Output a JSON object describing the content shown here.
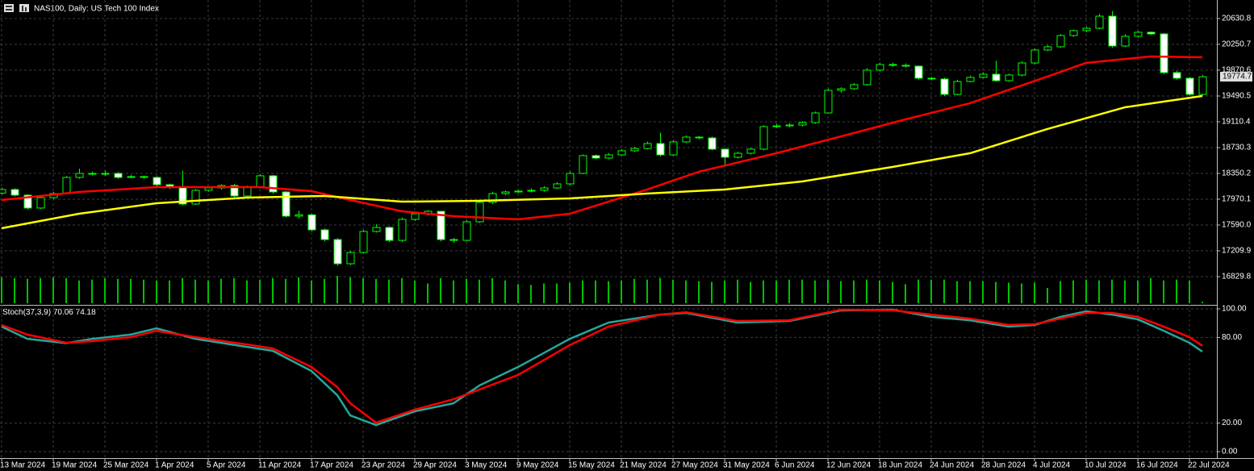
{
  "chart_data": [
    {
      "type": "candlestick",
      "title": "NAS100, Daily:  US Tech 100 Index",
      "categories": [
        "13 Mar 2024",
        null,
        null,
        null,
        "19 Mar 2024",
        null,
        null,
        null,
        "25 Mar 2024",
        null,
        null,
        null,
        "1 Apr 2024",
        null,
        null,
        null,
        "5 Apr 2024",
        null,
        null,
        null,
        "11 Apr 2024",
        null,
        null,
        null,
        "17 Apr 2024",
        null,
        null,
        null,
        "23 Apr 2024",
        null,
        null,
        null,
        "29 Apr 2024",
        null,
        null,
        null,
        "3 May 2024",
        null,
        null,
        null,
        "9 May 2024",
        null,
        null,
        null,
        "15 May 2024",
        null,
        null,
        null,
        "21 May 2024",
        null,
        null,
        null,
        "27 May 2024",
        null,
        null,
        null,
        "31 May 2024",
        null,
        null,
        null,
        "6 Jun 2024",
        null,
        null,
        null,
        "12 Jun 2024",
        null,
        null,
        null,
        "18 Jun 2024",
        null,
        null,
        null,
        "24 Jun 2024",
        null,
        null,
        null,
        "28 Jun 2024",
        null,
        null,
        null,
        "4 Jul 2024",
        null,
        null,
        null,
        "10 Jul 2024",
        null,
        null,
        null,
        "16 Jul 2024",
        null,
        null,
        null,
        "22 Jul 2024",
        null
      ],
      "ohlc": [
        [
          18060,
          18140,
          18040,
          18113
        ],
        [
          18113,
          18130,
          18010,
          18030
        ],
        [
          18030,
          18045,
          17815,
          17840
        ],
        [
          17840,
          18010,
          17825,
          17994
        ],
        [
          17994,
          18080,
          17975,
          18053
        ],
        [
          18053,
          18310,
          18040,
          18291
        ],
        [
          18291,
          18420,
          18270,
          18350
        ],
        [
          18350,
          18375,
          18320,
          18338
        ],
        [
          18338,
          18390,
          18315,
          18350
        ],
        [
          18350,
          18370,
          18270,
          18291
        ],
        [
          18291,
          18330,
          18280,
          18303
        ],
        [
          18303,
          18320,
          18270,
          18291
        ],
        [
          18291,
          18305,
          18160,
          18184
        ],
        [
          18184,
          18200,
          18120,
          18148
        ],
        [
          18148,
          18390,
          17880,
          17899
        ],
        [
          17899,
          18120,
          17885,
          18101
        ],
        [
          18101,
          18150,
          18080,
          18136
        ],
        [
          18136,
          18190,
          18110,
          18172
        ],
        [
          18172,
          18195,
          18000,
          18018
        ],
        [
          18018,
          18170,
          17990,
          18148
        ],
        [
          18148,
          18340,
          18130,
          18315
        ],
        [
          18315,
          18330,
          18050,
          18077
        ],
        [
          18077,
          18090,
          17700,
          17721
        ],
        [
          17721,
          17800,
          17690,
          17740
        ],
        [
          17740,
          17760,
          17495,
          17519
        ],
        [
          17519,
          17540,
          17350,
          17376
        ],
        [
          17376,
          17400,
          16990,
          17020
        ],
        [
          17020,
          17210,
          17000,
          17186
        ],
        [
          17186,
          17520,
          17170,
          17495
        ],
        [
          17495,
          17600,
          17480,
          17554
        ],
        [
          17554,
          17570,
          17340,
          17364
        ],
        [
          17364,
          17700,
          17340,
          17673
        ],
        [
          17673,
          17780,
          17650,
          17756
        ],
        [
          17756,
          17810,
          17730,
          17792
        ],
        [
          17792,
          17800,
          17350,
          17376
        ],
        [
          17376,
          17400,
          17330,
          17364
        ],
        [
          17364,
          17660,
          17350,
          17638
        ],
        [
          17638,
          17950,
          17620,
          17923
        ],
        [
          17923,
          18080,
          17900,
          18053
        ],
        [
          18053,
          18100,
          18030,
          18077
        ],
        [
          18077,
          18110,
          18060,
          18089
        ],
        [
          18089,
          18130,
          18070,
          18101
        ],
        [
          18101,
          18160,
          18080,
          18136
        ],
        [
          18136,
          18220,
          18120,
          18196
        ],
        [
          18196,
          18380,
          18180,
          18350
        ],
        [
          18350,
          18630,
          18340,
          18612
        ],
        [
          18612,
          18630,
          18560,
          18576
        ],
        [
          18576,
          18650,
          18560,
          18623
        ],
        [
          18623,
          18710,
          18610,
          18683
        ],
        [
          18683,
          18740,
          18670,
          18718
        ],
        [
          18718,
          18820,
          18700,
          18790
        ],
        [
          18790,
          18950,
          18600,
          18623
        ],
        [
          18623,
          18840,
          18610,
          18814
        ],
        [
          18814,
          18910,
          18800,
          18885
        ],
        [
          18885,
          18900,
          18850,
          18873
        ],
        [
          18873,
          18890,
          18690,
          18707
        ],
        [
          18707,
          18720,
          18450,
          18588
        ],
        [
          18588,
          18670,
          18570,
          18647
        ],
        [
          18647,
          18730,
          18630,
          18707
        ],
        [
          18707,
          19060,
          18690,
          19039
        ],
        [
          19039,
          19080,
          19020,
          19050
        ],
        [
          19050,
          19090,
          19030,
          19063
        ],
        [
          19063,
          19120,
          19040,
          19099
        ],
        [
          19099,
          19260,
          19080,
          19241
        ],
        [
          19241,
          19600,
          19230,
          19574
        ],
        [
          19574,
          19620,
          19540,
          19597
        ],
        [
          19597,
          19680,
          19580,
          19657
        ],
        [
          19657,
          19900,
          19640,
          19871
        ],
        [
          19871,
          19980,
          19850,
          19954
        ],
        [
          19954,
          19980,
          19920,
          19942
        ],
        [
          19942,
          19970,
          19910,
          19930
        ],
        [
          19930,
          19940,
          19730,
          19752
        ],
        [
          19752,
          19770,
          19720,
          19740
        ],
        [
          19740,
          19760,
          19490,
          19514
        ],
        [
          19514,
          19730,
          19500,
          19704
        ],
        [
          19704,
          19790,
          19690,
          19764
        ],
        [
          19764,
          19840,
          19750,
          19811
        ],
        [
          19811,
          20010,
          19700,
          19716
        ],
        [
          19716,
          19820,
          19700,
          19799
        ],
        [
          19799,
          20000,
          19780,
          19977
        ],
        [
          19977,
          20190,
          19960,
          20168
        ],
        [
          20168,
          20240,
          20150,
          20215
        ],
        [
          20215,
          20400,
          20200,
          20381
        ],
        [
          20381,
          20470,
          20360,
          20453
        ],
        [
          20453,
          20510,
          20430,
          20488
        ],
        [
          20488,
          20700,
          20470,
          20666
        ],
        [
          20666,
          20740,
          20200,
          20227
        ],
        [
          20227,
          20400,
          20210,
          20370
        ],
        [
          20370,
          20450,
          20350,
          20429
        ],
        [
          20429,
          20440,
          20390,
          20405
        ],
        [
          20405,
          20420,
          19810,
          19835
        ],
        [
          19835,
          19860,
          19730,
          19752
        ],
        [
          19752,
          19770,
          19490,
          19514
        ],
        [
          19514,
          19800,
          19500,
          19774.7
        ]
      ],
      "volume": [
        34,
        33,
        32,
        33,
        34,
        33,
        30,
        31,
        33,
        32,
        32,
        31,
        30,
        30,
        33,
        31,
        30,
        32,
        33,
        30,
        31,
        33,
        32,
        34,
        30,
        32,
        36,
        34,
        33,
        32,
        31,
        33,
        30,
        26,
        33,
        30,
        32,
        31,
        33,
        30,
        25,
        24,
        26,
        26,
        27,
        30,
        30,
        29,
        30,
        32,
        31,
        33,
        31,
        30,
        29,
        28,
        30,
        31,
        28,
        30,
        30,
        31,
        31,
        30,
        31,
        29,
        30,
        31,
        30,
        28,
        25,
        31,
        31,
        31,
        29,
        29,
        29,
        28,
        27,
        26,
        27,
        20,
        29,
        30,
        31,
        30,
        31,
        30,
        30,
        33,
        30,
        31,
        30,
        2
      ],
      "series": [
        {
          "color": "#ff0000",
          "x": [
            0,
            6,
            12,
            20,
            24,
            27,
            31,
            35,
            40,
            44,
            47,
            50,
            54,
            60,
            66,
            70,
            75,
            81,
            84,
            89,
            93
          ],
          "values": [
            17958,
            18077,
            18148,
            18148,
            18089,
            17958,
            17792,
            17721,
            17673,
            17756,
            17934,
            18113,
            18374,
            18647,
            18944,
            19146,
            19384,
            19776,
            19978,
            20073,
            20061
          ]
        },
        {
          "color": "#ffff00",
          "x": [
            0,
            6,
            12,
            19,
            25,
            31,
            37,
            44,
            50,
            56,
            62,
            69,
            75,
            81,
            87,
            93
          ],
          "values": [
            17543,
            17756,
            17911,
            17994,
            18018,
            17934,
            17946,
            17982,
            18053,
            18113,
            18232,
            18445,
            18647,
            19004,
            19324,
            19491
          ]
        }
      ],
      "ylim": [
        16437.9,
        20904
      ],
      "yticks": [
        20630.8,
        20250.7,
        19870.6,
        19490.5,
        19110.4,
        18730.3,
        18350.2,
        {
          "value": 17970.1,
          "label": "17970.1"
        },
        {
          "value": 17590,
          "label": "17590.0"
        },
        17209.9,
        16829.8
      ],
      "grid": true
    },
    {
      "type": "line",
      "title": "Stoch(37,3,9)",
      "series": [
        {
          "color": "#26a69a",
          "x": [
            0,
            2,
            5,
            7,
            10,
            12,
            15,
            19,
            21,
            24,
            26,
            27,
            29,
            32,
            35,
            37,
            40,
            44,
            47,
            51,
            53,
            57,
            61,
            65,
            69,
            72,
            75,
            78,
            80,
            82,
            84,
            86,
            88,
            90,
            92,
            93
          ],
          "values": [
            87.6,
            79,
            76,
            79,
            82,
            86.4,
            79,
            73.4,
            70.6,
            56.5,
            39.5,
            25.4,
            18.6,
            28.2,
            33.9,
            46.3,
            59.3,
            79,
            90.4,
            96,
            97.2,
            90.4,
            91.5,
            98.9,
            99.5,
            94.4,
            92,
            87.6,
            88.7,
            94.4,
            98.3,
            96,
            92.7,
            84.7,
            76.3,
            70.06
          ]
        },
        {
          "color": "#ff0000",
          "x": [
            0,
            2,
            5,
            7,
            10,
            12,
            15,
            19,
            21,
            24,
            26,
            27,
            29,
            32,
            35,
            37,
            40,
            44,
            47,
            51,
            53,
            57,
            61,
            65,
            69,
            72,
            75,
            78,
            80,
            82,
            84,
            86,
            88,
            90,
            92,
            93
          ],
          "values": [
            88.7,
            82,
            76.3,
            77.4,
            80.2,
            84.7,
            80.2,
            75.1,
            72.3,
            59.3,
            45.2,
            33.9,
            20.3,
            29.4,
            36.7,
            43.5,
            53.7,
            74.6,
            87.6,
            96,
            97.7,
            91.5,
            92,
            99.4,
            99,
            96,
            93.2,
            88.7,
            89.3,
            93.2,
            97.2,
            97.2,
            94.4,
            87.6,
            80.2,
            74.18
          ]
        }
      ],
      "ylim": [
        0,
        100
      ],
      "yticks": [
        {
          "value": 100,
          "label": "100.00"
        },
        {
          "value": 80,
          "label": "80.00"
        },
        {
          "value": 20,
          "label": "20.00"
        },
        {
          "value": 0,
          "label": "0.00"
        }
      ],
      "grid": true
    }
  ]
}
